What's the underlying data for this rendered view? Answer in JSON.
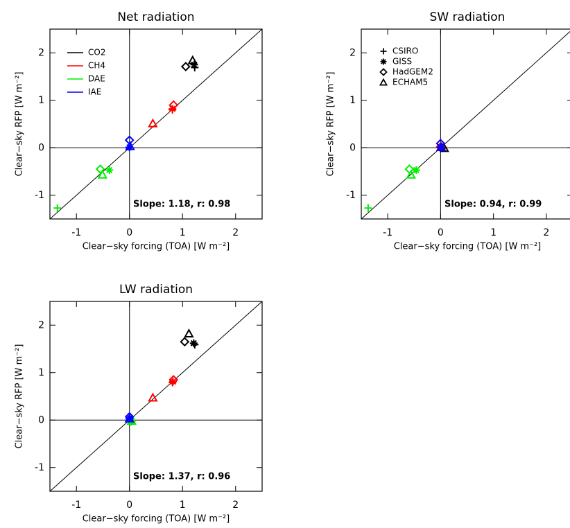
{
  "chart_data": [
    {
      "type": "scatter",
      "title": "Net radiation",
      "x_label": "Clear−sky forcing (TOA) [W m⁻²]",
      "y_label": "Clear−sky RFP [W m⁻²]",
      "annotation": "Slope: 1.18, r: 0.98",
      "xlim": [
        -1.5,
        2.5
      ],
      "ylim": [
        -1.5,
        2.5
      ],
      "xticks": [
        -1,
        0,
        1,
        2
      ],
      "yticks": [
        -1,
        0,
        1,
        2
      ],
      "legend": "agents",
      "series": [
        {
          "x": [
            1.23,
            1.22,
            1.06,
            1.19
          ],
          "values": [
            1.69,
            1.75,
            1.71,
            1.84
          ]
        },
        {
          "x": [
            0.81,
            0.81,
            0.83,
            0.44
          ],
          "values": [
            0.8,
            0.82,
            0.9,
            0.51
          ]
        },
        {
          "x": [
            -1.36,
            -0.38,
            -0.55,
            -0.51
          ],
          "values": [
            -1.27,
            -0.47,
            -0.45,
            -0.57
          ]
        },
        {
          "x": [
            0,
            0,
            0,
            0.01
          ],
          "values": [
            0.01,
            0.01,
            0.16,
            0.03
          ]
        }
      ]
    },
    {
      "type": "scatter",
      "title": "SW radiation",
      "x_label": "Clear−sky forcing (TOA) [W m⁻²]",
      "y_label": "Clear−sky RFP [W m⁻²]",
      "annotation": "Slope: 0.94, r: 0.99",
      "xlim": [
        -1.5,
        2.5
      ],
      "ylim": [
        -1.5,
        2.5
      ],
      "xticks": [
        -1,
        0,
        1,
        2
      ],
      "yticks": [
        -1,
        0,
        1,
        2
      ],
      "legend": "models",
      "series": [
        {
          "x": [
            0.02,
            0.03,
            0.01,
            0.07
          ],
          "values": [
            -0.01,
            0,
            0.02,
            -0.01
          ]
        },
        {
          "x": [
            0,
            0,
            0,
            0.01
          ],
          "values": [
            0.01,
            0.01,
            0.02,
            0.02
          ]
        },
        {
          "x": [
            -1.37,
            -0.46,
            -0.59,
            -0.56
          ],
          "values": [
            -1.27,
            -0.47,
            -0.45,
            -0.57
          ]
        },
        {
          "x": [
            0,
            0,
            0,
            0.01
          ],
          "values": [
            0.01,
            0.01,
            0.09,
            0.01
          ]
        }
      ]
    },
    {
      "type": "scatter",
      "title": "LW radiation",
      "x_label": "Clear−sky forcing (TOA) [W m⁻²]",
      "y_label": "Clear−sky RFP [W m⁻²]",
      "annotation": "Slope: 1.37, r: 0.96",
      "xlim": [
        -1.5,
        2.5
      ],
      "ylim": [
        -1.5,
        2.5
      ],
      "xticks": [
        -1,
        0,
        1,
        2
      ],
      "yticks": [
        -1,
        0,
        1,
        2
      ],
      "series": [
        {
          "x": [
            1.23,
            1.21,
            1.04,
            1.12
          ],
          "values": [
            1.59,
            1.62,
            1.65,
            1.82
          ]
        },
        {
          "x": [
            0.81,
            0.82,
            0.83,
            0.44
          ],
          "values": [
            0.79,
            0.81,
            0.85,
            0.47
          ]
        },
        {
          "x": [
            0.04,
            0.04,
            0.03,
            0.04
          ],
          "values": [
            -0.02,
            -0.01,
            -0.02,
            -0.02
          ]
        },
        {
          "x": [
            0,
            0,
            0,
            0
          ],
          "values": [
            0.03,
            0.04,
            0.07,
            0.03
          ]
        }
      ]
    }
  ],
  "agents": [
    {
      "name": "CO2",
      "color": "#000000"
    },
    {
      "name": "CH4",
      "color": "#ff0000"
    },
    {
      "name": "DAE",
      "color": "#00ee00"
    },
    {
      "name": "IAE",
      "color": "#0000ff"
    }
  ],
  "models": [
    {
      "name": "CSIRO",
      "marker": "plus"
    },
    {
      "name": "GISS",
      "marker": "asterisk"
    },
    {
      "name": "HadGEM2",
      "marker": "diamond"
    },
    {
      "name": "ECHAM5",
      "marker": "triangle"
    }
  ]
}
